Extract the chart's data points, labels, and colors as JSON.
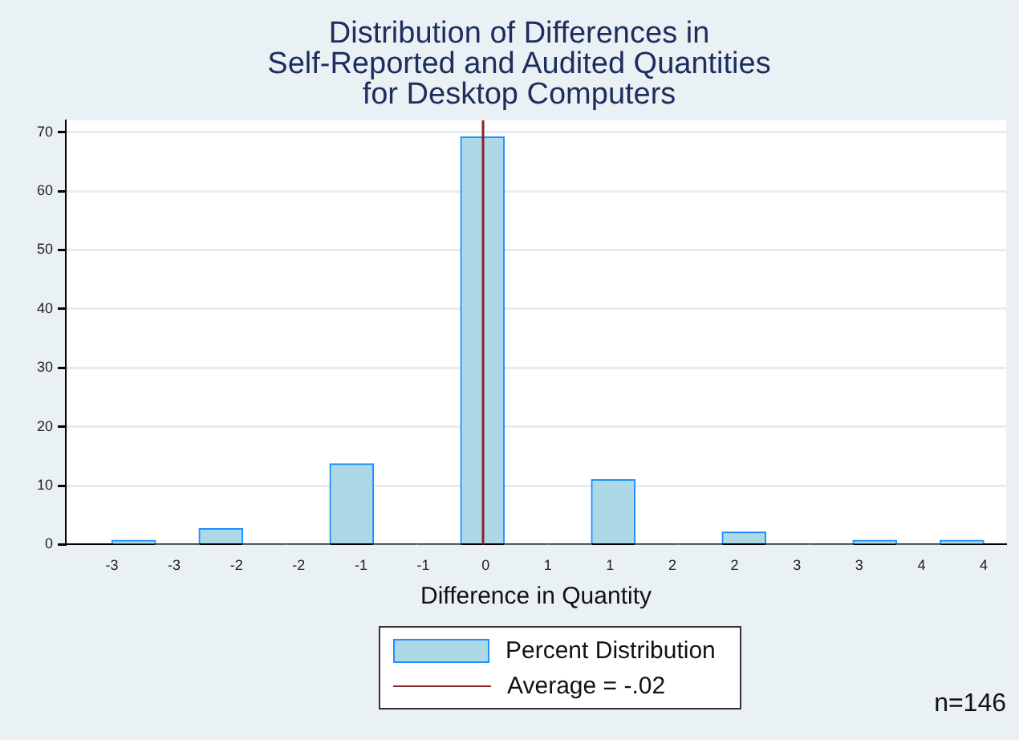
{
  "chart_data": {
    "type": "histogram",
    "title": "Distribution of Differences in\nSelf-Reported and Audited Quantities\nfor Desktop Computers",
    "xlabel": "Difference in Quantity",
    "bins": [
      -3,
      -2.65,
      -2.3,
      -1.95,
      -1.6,
      -1.25,
      -0.9,
      -0.55,
      -0.2,
      0.15,
      0.5,
      0.85,
      1.2,
      1.55,
      1.9,
      2.25,
      2.6,
      2.95,
      3.3,
      3.65,
      4
    ],
    "series": [
      {
        "name": "Percent Distribution",
        "color": "#add8e6",
        "values": [
          0.7,
          0,
          2.7,
          0,
          0,
          13.7,
          0,
          0,
          69.2,
          0,
          0,
          11,
          0,
          0,
          2.1,
          0,
          0,
          0.7,
          0,
          0.7
        ]
      }
    ],
    "xlim": [
      -3.37,
      4.18
    ],
    "xticks": [
      {
        "value": -3,
        "label": "-3"
      },
      {
        "value": -2.5,
        "label": "-3"
      },
      {
        "value": -2,
        "label": "-2"
      },
      {
        "value": -1.5,
        "label": "-2"
      },
      {
        "value": -1,
        "label": "-1"
      },
      {
        "value": -0.5,
        "label": "-1"
      },
      {
        "value": 0,
        "label": "0"
      },
      {
        "value": 0.5,
        "label": "1"
      },
      {
        "value": 1,
        "label": "1"
      },
      {
        "value": 1.5,
        "label": "2"
      },
      {
        "value": 2,
        "label": "2"
      },
      {
        "value": 2.5,
        "label": "3"
      },
      {
        "value": 3,
        "label": "3"
      },
      {
        "value": 3.5,
        "label": "4"
      },
      {
        "value": 4,
        "label": "4"
      }
    ],
    "ylim": [
      0,
      72
    ],
    "yticks": [
      0,
      10,
      20,
      30,
      40,
      50,
      60,
      70
    ],
    "ref_lines": [
      {
        "axis": "x",
        "value": -0.02,
        "label": "Average = -.02",
        "color": "#8b2323"
      }
    ],
    "grid": "y",
    "legend": "bottom",
    "annotations": [
      "n=146"
    ]
  }
}
